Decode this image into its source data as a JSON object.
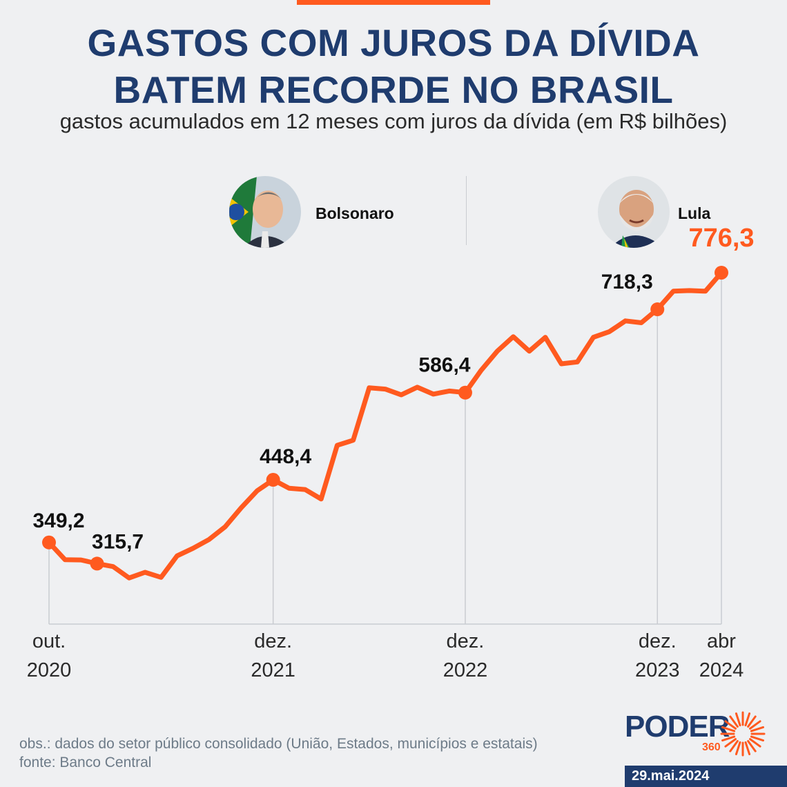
{
  "header": {
    "title_line1": "GASTOS COM JUROS DA DÍVIDA",
    "title_line2": "BATEM RECORDE NO BRASIL",
    "subtitle": "gastos acumulados em 12 meses com juros da dívida (em R$ bilhões)"
  },
  "leaders": [
    {
      "name": "Bolsonaro",
      "icon": "bolsonaro-portrait"
    },
    {
      "name": "Lula",
      "icon": "lula-portrait"
    }
  ],
  "colors": {
    "accent": "#ff5a1f",
    "navy": "#1f3c6e",
    "background": "#eff0f2"
  },
  "chart_data": {
    "type": "line",
    "x": [
      "2020-10",
      "2020-11",
      "2020-12",
      "2021-01",
      "2021-02",
      "2021-03",
      "2021-04",
      "2021-05",
      "2021-06",
      "2021-07",
      "2021-08",
      "2021-09",
      "2021-10",
      "2021-11",
      "2021-12",
      "2022-01",
      "2022-02",
      "2022-03",
      "2022-04",
      "2022-05",
      "2022-06",
      "2022-07",
      "2022-08",
      "2022-09",
      "2022-10",
      "2022-11",
      "2022-12",
      "2023-01",
      "2023-02",
      "2023-03",
      "2023-04",
      "2023-05",
      "2023-06",
      "2023-07",
      "2023-08",
      "2023-09",
      "2023-10",
      "2023-11",
      "2023-12",
      "2024-01",
      "2024-02",
      "2024-03",
      "2024-04"
    ],
    "values": [
      349.2,
      322.0,
      321.5,
      315.7,
      311.0,
      293.0,
      302.0,
      294.0,
      328.0,
      340.0,
      354.0,
      374.0,
      404.0,
      431.0,
      448.4,
      435.0,
      433.0,
      418.0,
      503.0,
      511.0,
      594.0,
      592.0,
      583.0,
      595.0,
      584.0,
      589.0,
      586.4,
      622.0,
      652.0,
      675.0,
      652.0,
      674.0,
      632.0,
      635.0,
      674.0,
      683.0,
      700.0,
      697.0,
      718.3,
      747.0,
      748.0,
      747.0,
      776.3
    ],
    "ylim": [
      220,
      820
    ],
    "x_ticks": [
      {
        "index": 0,
        "line1": "out.",
        "line2": "2020"
      },
      {
        "index": 14,
        "line1": "dez.",
        "line2": "2021"
      },
      {
        "index": 26,
        "line1": "dez.",
        "line2": "2022"
      },
      {
        "index": 38,
        "line1": "dez.",
        "line2": "2023"
      },
      {
        "index": 42,
        "line1": "abr",
        "line2": "2024"
      }
    ],
    "markers": [
      0,
      3,
      14,
      26,
      38,
      42
    ],
    "point_labels": [
      {
        "index": 0,
        "text": "349,2"
      },
      {
        "index": 3,
        "text": "315,7"
      },
      {
        "index": 14,
        "text": "448,4"
      },
      {
        "index": 26,
        "text": "586,4"
      },
      {
        "index": 38,
        "text": "718,3"
      },
      {
        "index": 42,
        "text": "776,3",
        "highlight": true
      }
    ],
    "line_color": "#ff5a1f",
    "grid": false
  },
  "footer": {
    "note": "obs.: dados do setor público consolidado (União, Estados, municípios e estatais)",
    "source": "fonte: Banco Central",
    "logo_word": "PODER",
    "logo_number": "360",
    "date": "29.mai.2024"
  }
}
